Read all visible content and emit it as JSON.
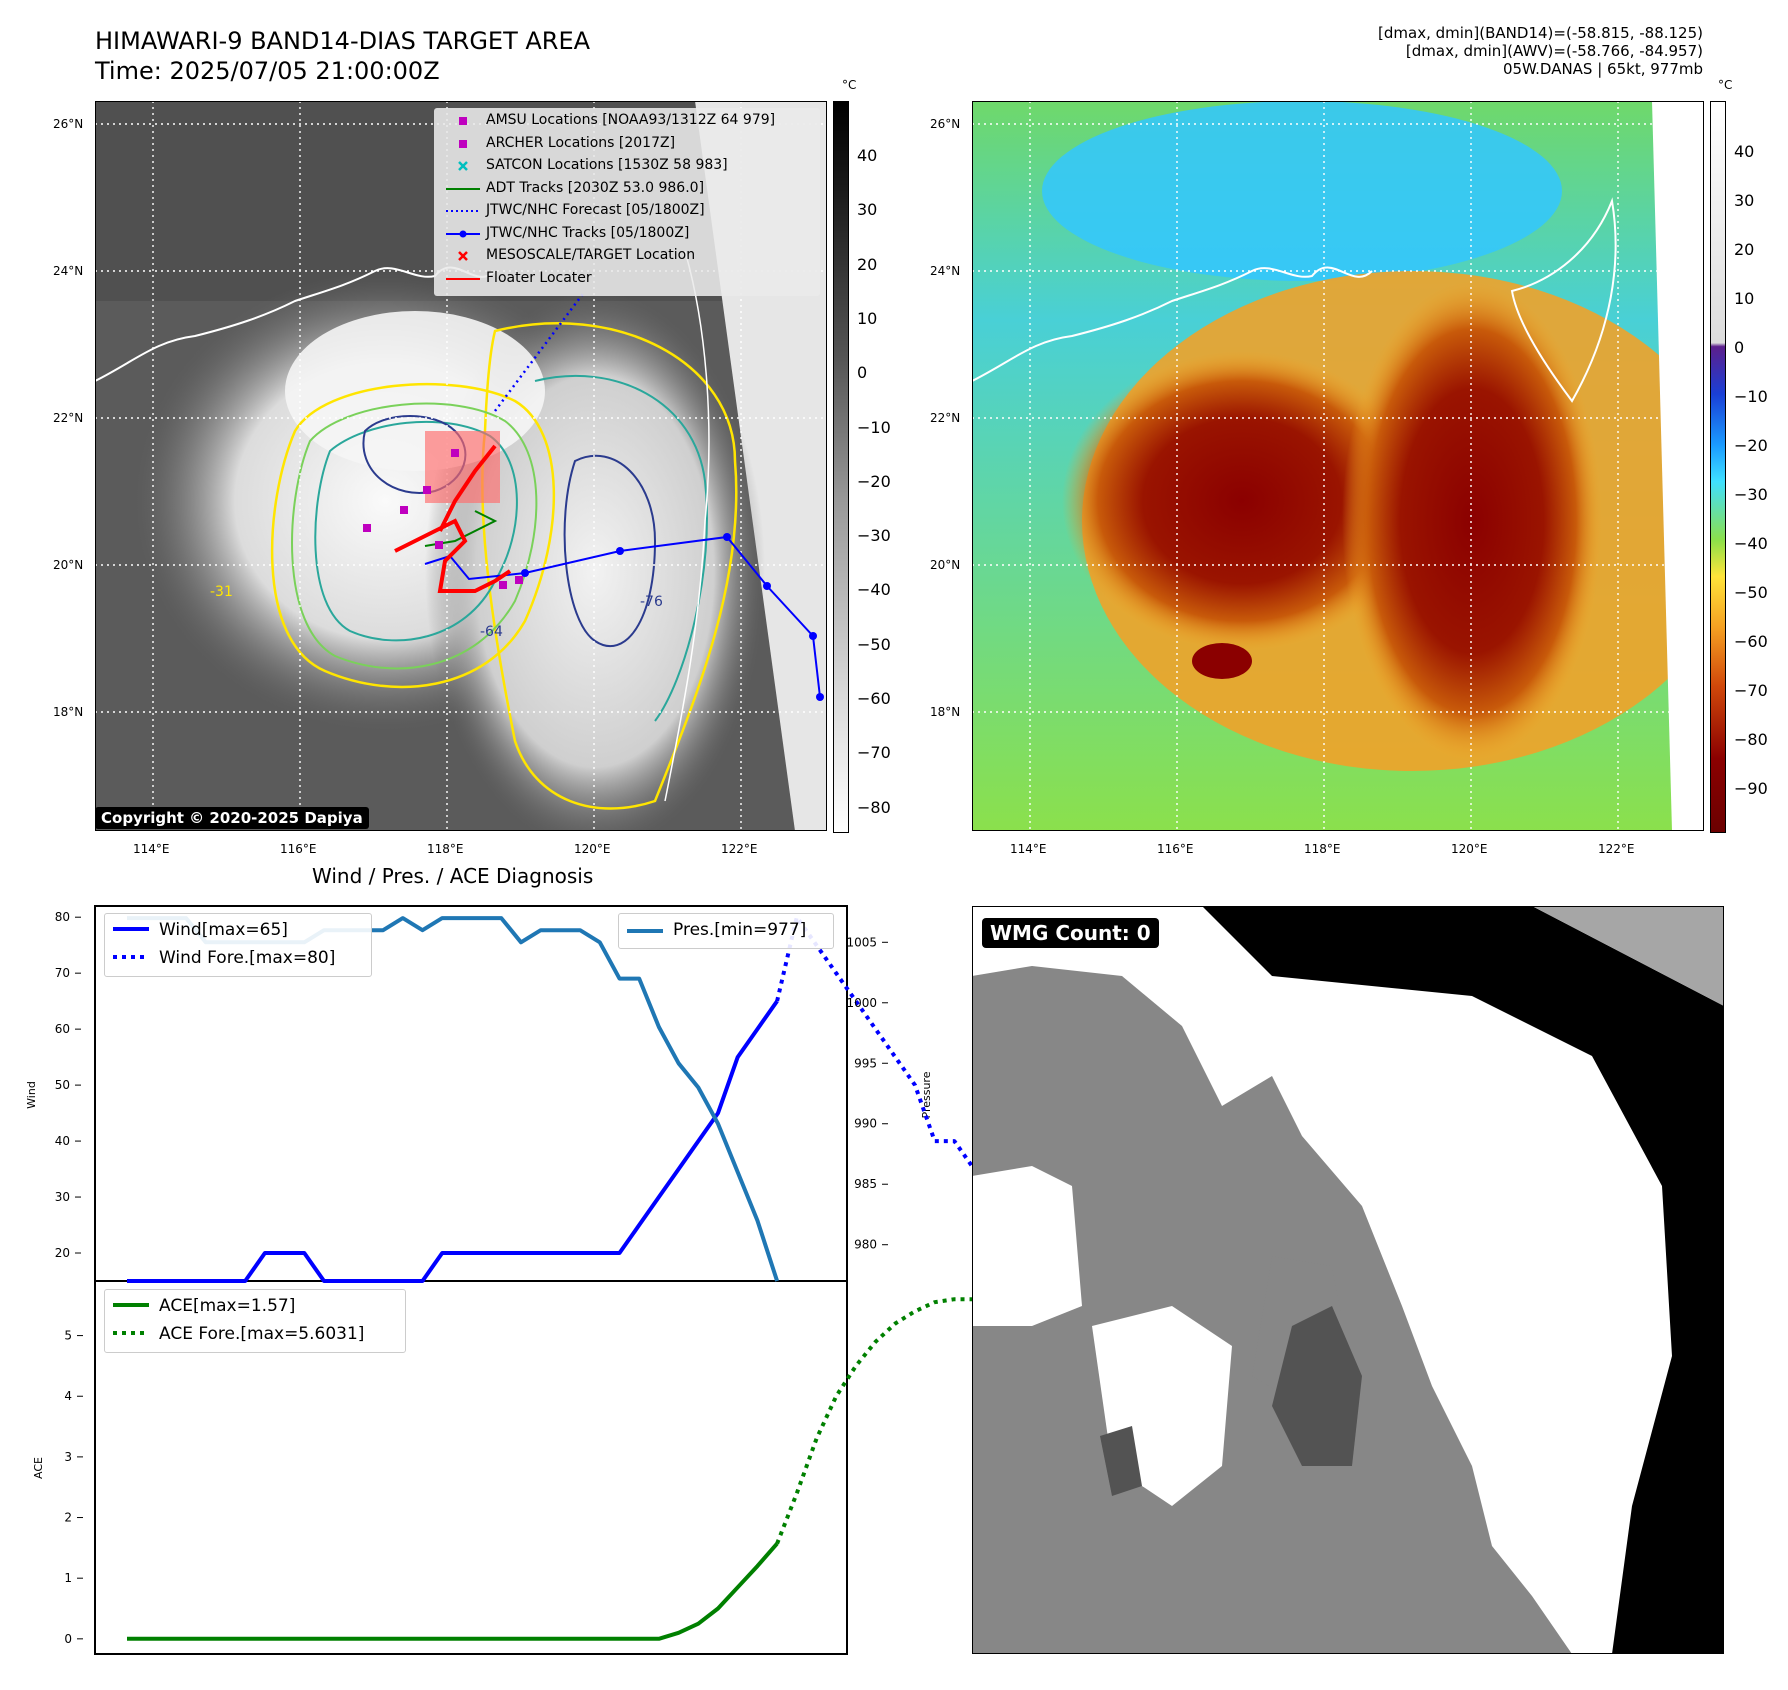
{
  "header": {
    "title_line1": "HIMAWARI-9 BAND14-DIAS TARGET AREA",
    "title_line2": "Time: 2025/07/05 21:00:00Z",
    "info_line1": "[dmax, dmin](BAND14)=(-58.815, -88.125)",
    "info_line2": "[dmax, dmin](AWV)=(-58.766, -84.957)",
    "info_line3": "05W.DANAS | 65kt, 977mb"
  },
  "maps": {
    "lat_ticks": [
      "26°N",
      "24°N",
      "22°N",
      "20°N",
      "18°N"
    ],
    "lon_ticks": [
      "114°E",
      "116°E",
      "118°E",
      "120°E",
      "122°E"
    ],
    "copyright": "Copyright © 2020-2025 Dapiya",
    "left_colorbar": {
      "unit": "°C",
      "ticks": [
        "40",
        "30",
        "20",
        "10",
        "0",
        "−10",
        "−20",
        "−30",
        "−40",
        "−50",
        "−60",
        "−70",
        "−80"
      ]
    },
    "right_colorbar": {
      "unit": "°C",
      "ticks": [
        "40",
        "30",
        "20",
        "10",
        "0",
        "−10",
        "−20",
        "−30",
        "−40",
        "−50",
        "−60",
        "−70",
        "−80",
        "−90"
      ]
    },
    "contour_labels": [
      "-31",
      "-64",
      "-76"
    ],
    "legend": [
      {
        "label": "AMSU Locations [NOAA93/1312Z 64 979]",
        "marker": "square",
        "color": "#bf00bf"
      },
      {
        "label": "ARCHER Locations [2017Z]",
        "marker": "square",
        "color": "#bf00bf"
      },
      {
        "label": "SATCON Locations [1530Z 58 983]",
        "marker": "x",
        "color": "#00bfbf"
      },
      {
        "label": "ADT Tracks [2030Z 53.0 986.0]",
        "marker": "line",
        "color": "#008000"
      },
      {
        "label": "JTWC/NHC Forecast [05/1800Z]",
        "marker": "dotted",
        "color": "#0000ff"
      },
      {
        "label": "JTWC/NHC Tracks [05/1800Z]",
        "marker": "line-dot",
        "color": "#0000ff"
      },
      {
        "label": "MESOSCALE/TARGET Location",
        "marker": "x",
        "color": "#ff0000"
      },
      {
        "label": "Floater Locater",
        "marker": "line",
        "color": "#ff0000"
      }
    ]
  },
  "diagnosis": {
    "title": "Wind / Pres. / ACE Diagnosis",
    "wind_ylabel": "Wind",
    "pres_ylabel": "Pressure",
    "ace_ylabel": "ACE",
    "legend_wind": "Wind[max=65]",
    "legend_wind_fore": "Wind Fore.[max=80]",
    "legend_pres": "Pres.[min=977]",
    "legend_ace": "ACE[max=1.57]",
    "legend_ace_fore": "ACE Fore.[max=5.6031]"
  },
  "wmg": {
    "label": "WMG Count: 0"
  },
  "chart_data": [
    {
      "type": "line",
      "title": "Wind / Pres. / ACE Diagnosis",
      "ylabel": "Wind",
      "ylim": [
        15,
        82
      ],
      "ticks": [
        20,
        30,
        40,
        50,
        60,
        70,
        80
      ],
      "series": [
        {
          "name": "Wind[max=65]",
          "style": "solid",
          "color": "#0000ff",
          "values": [
            15,
            15,
            15,
            15,
            15,
            15,
            15,
            20,
            20,
            20,
            15,
            15,
            15,
            15,
            15,
            15,
            20,
            20,
            20,
            20,
            20,
            20,
            20,
            20,
            20,
            20,
            25,
            30,
            35,
            40,
            45,
            55,
            60,
            65
          ]
        },
        {
          "name": "Wind Fore.[max=80]",
          "style": "dotted",
          "color": "#0000ff",
          "x_offset": 33,
          "values": [
            65,
            80,
            75,
            70,
            65,
            60,
            55,
            50,
            40,
            40,
            35,
            25,
            25,
            20
          ]
        }
      ]
    },
    {
      "type": "line",
      "ylabel": "Pressure",
      "ylim": [
        977,
        1008
      ],
      "ticks": [
        980,
        985,
        990,
        995,
        1000,
        1005
      ],
      "series": [
        {
          "name": "Pres.[min=977]",
          "style": "solid",
          "color": "#1f77b4",
          "values": [
            1007,
            1007,
            1007,
            1007,
            1005,
            1005,
            1005,
            1005,
            1005,
            1005,
            1006,
            1006,
            1006,
            1006,
            1007,
            1006,
            1007,
            1007,
            1007,
            1007,
            1005,
            1006,
            1006,
            1006,
            1005,
            1002,
            1002,
            998,
            995,
            993,
            990,
            986,
            982,
            977
          ]
        }
      ]
    },
    {
      "type": "line",
      "ylabel": "ACE",
      "ylim": [
        -0.25,
        5.9
      ],
      "ticks": [
        0,
        1,
        2,
        3,
        4,
        5
      ],
      "series": [
        {
          "name": "ACE[max=1.57]",
          "style": "solid",
          "color": "#008000",
          "values": [
            0,
            0,
            0,
            0,
            0,
            0,
            0,
            0,
            0,
            0,
            0,
            0,
            0,
            0,
            0,
            0,
            0,
            0,
            0,
            0,
            0,
            0,
            0,
            0,
            0,
            0,
            0,
            0,
            0.1,
            0.25,
            0.5,
            0.85,
            1.2,
            1.57
          ]
        },
        {
          "name": "ACE Fore.[max=5.6031]",
          "style": "dotted",
          "color": "#008000",
          "x_offset": 33,
          "values": [
            1.57,
            2.4,
            3.3,
            4.0,
            4.5,
            4.9,
            5.2,
            5.4,
            5.55,
            5.6,
            5.6,
            5.6,
            5.6,
            5.6
          ]
        }
      ]
    }
  ]
}
